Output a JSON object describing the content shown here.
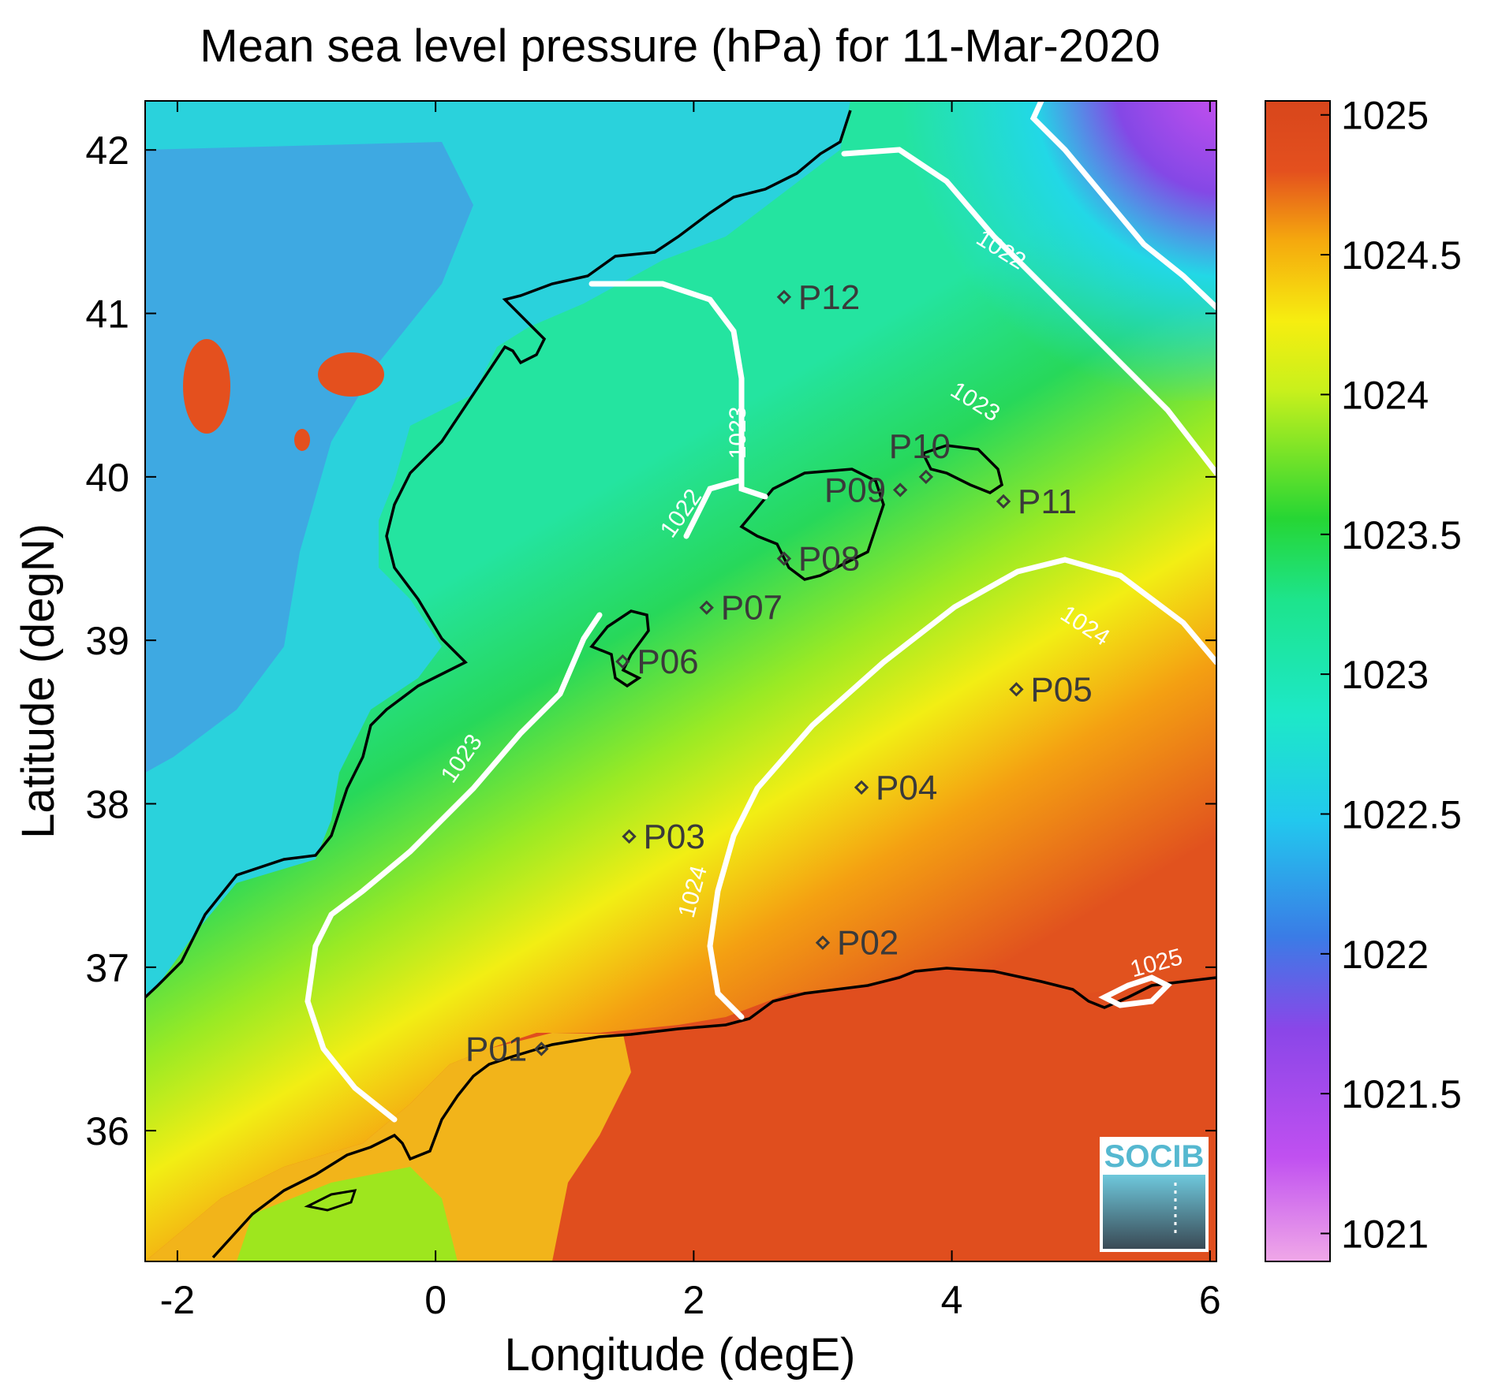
{
  "title": "Mean sea level pressure (hPa) for 11-Mar-2020",
  "x_axis": {
    "label": "Longitude (degE)",
    "range": [
      -2.25,
      6.05
    ],
    "ticks": [
      {
        "value": -2,
        "label": "-2"
      },
      {
        "value": 0,
        "label": "0"
      },
      {
        "value": 2,
        "label": "2"
      },
      {
        "value": 4,
        "label": "4"
      },
      {
        "value": 6,
        "label": "6"
      }
    ]
  },
  "y_axis": {
    "label": "Latitude (degN)",
    "range": [
      35.2,
      42.3
    ],
    "ticks": [
      {
        "value": 36,
        "label": "36"
      },
      {
        "value": 37,
        "label": "37"
      },
      {
        "value": 38,
        "label": "38"
      },
      {
        "value": 39,
        "label": "39"
      },
      {
        "value": 40,
        "label": "40"
      },
      {
        "value": 41,
        "label": "41"
      },
      {
        "value": 42,
        "label": "42"
      }
    ]
  },
  "colorbar": {
    "range": [
      1020.9,
      1025.05
    ],
    "ticks": [
      {
        "value": 1021,
        "label": "1021"
      },
      {
        "value": 1021.5,
        "label": "1021.5"
      },
      {
        "value": 1022,
        "label": "1022"
      },
      {
        "value": 1022.5,
        "label": "1022.5"
      },
      {
        "value": 1023,
        "label": "1023"
      },
      {
        "value": 1023.5,
        "label": "1023.5"
      },
      {
        "value": 1024,
        "label": "1024"
      },
      {
        "value": 1024.5,
        "label": "1024.5"
      },
      {
        "value": 1025,
        "label": "1025"
      }
    ],
    "colors": [
      "#f0a8e8",
      "#c050f0",
      "#7a44e4",
      "#3a7ce6",
      "#22d8e6",
      "#1de48c",
      "#26d634",
      "#c8f01c",
      "#f6ee10",
      "#f5a80e",
      "#e4501e",
      "#d8461c"
    ]
  },
  "contour_labels": [
    {
      "text": "1022",
      "lon": 4.35,
      "lat": 41.35,
      "angle": 32
    },
    {
      "text": "1023",
      "lon": 4.15,
      "lat": 40.42,
      "angle": 32
    },
    {
      "text": "1023",
      "lon": 2.4,
      "lat": 40.27,
      "angle": -90
    },
    {
      "text": "1023",
      "lon": 0.25,
      "lat": 38.25,
      "angle": -55
    },
    {
      "text": "1022",
      "lon": 1.95,
      "lat": 39.75,
      "angle": -55
    },
    {
      "text": "1024",
      "lon": 5.0,
      "lat": 39.05,
      "angle": 33
    },
    {
      "text": "1024",
      "lon": 2.05,
      "lat": 37.45,
      "angle": -75
    },
    {
      "text": "1025",
      "lon": 5.6,
      "lat": 36.98,
      "angle": -15
    }
  ],
  "stations": [
    {
      "label": "P01",
      "lon": 0.82,
      "lat": 36.5,
      "side": "left"
    },
    {
      "label": "P02",
      "lon": 3.0,
      "lat": 37.15,
      "side": "right"
    },
    {
      "label": "P03",
      "lon": 1.5,
      "lat": 37.8,
      "side": "right"
    },
    {
      "label": "P04",
      "lon": 3.3,
      "lat": 38.1,
      "side": "right"
    },
    {
      "label": "P05",
      "lon": 4.5,
      "lat": 38.7,
      "side": "right"
    },
    {
      "label": "P06",
      "lon": 1.45,
      "lat": 38.87,
      "side": "right"
    },
    {
      "label": "P07",
      "lon": 2.1,
      "lat": 39.2,
      "side": "right"
    },
    {
      "label": "P08",
      "lon": 2.7,
      "lat": 39.5,
      "side": "right"
    },
    {
      "label": "P09",
      "lon": 3.6,
      "lat": 39.92,
      "side": "left"
    },
    {
      "label": "P10",
      "lon": 3.8,
      "lat": 40.0,
      "side": "above"
    },
    {
      "label": "P11",
      "lon": 4.4,
      "lat": 39.85,
      "side": "right"
    },
    {
      "label": "P12",
      "lon": 2.7,
      "lat": 41.1,
      "side": "right"
    }
  ],
  "logo": {
    "text": "SOCIB"
  }
}
